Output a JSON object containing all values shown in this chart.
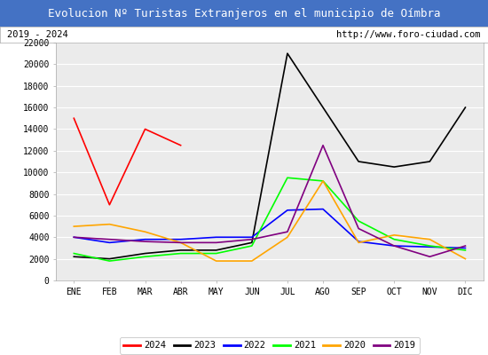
{
  "title": "Evolucion Nº Turistas Extranjeros en el municipio de Oímbra",
  "subtitle_left": "2019 - 2024",
  "subtitle_right": "http://www.foro-ciudad.com",
  "title_bg_color": "#4472c4",
  "title_text_color": "white",
  "months": [
    "ENE",
    "FEB",
    "MAR",
    "ABR",
    "MAY",
    "JUN",
    "JUL",
    "AGO",
    "SEP",
    "OCT",
    "NOV",
    "DIC"
  ],
  "ylim": [
    0,
    22000
  ],
  "yticks": [
    0,
    2000,
    4000,
    6000,
    8000,
    10000,
    12000,
    14000,
    16000,
    18000,
    20000,
    22000
  ],
  "series": {
    "2024": {
      "color": "red",
      "data": [
        15000,
        7000,
        14000,
        12500,
        null,
        null,
        null,
        null,
        null,
        null,
        null,
        null
      ]
    },
    "2023": {
      "color": "black",
      "data": [
        2200,
        2000,
        2500,
        2800,
        2800,
        3500,
        21000,
        16000,
        11000,
        10500,
        11000,
        16000
      ]
    },
    "2022": {
      "color": "blue",
      "data": [
        4000,
        3500,
        3800,
        3800,
        4000,
        4000,
        6500,
        6600,
        3600,
        3200,
        3100,
        3000
      ]
    },
    "2021": {
      "color": "lime",
      "data": [
        2500,
        1800,
        2200,
        2500,
        2500,
        3200,
        9500,
        9200,
        5500,
        3800,
        3200,
        2800
      ]
    },
    "2020": {
      "color": "orange",
      "data": [
        5000,
        5200,
        4500,
        3500,
        1800,
        1800,
        4000,
        9200,
        3500,
        4200,
        3800,
        2000
      ]
    },
    "2019": {
      "color": "purple",
      "data": [
        4000,
        3800,
        3600,
        3500,
        3500,
        3800,
        4500,
        12500,
        4800,
        3200,
        2200,
        3200
      ]
    }
  }
}
